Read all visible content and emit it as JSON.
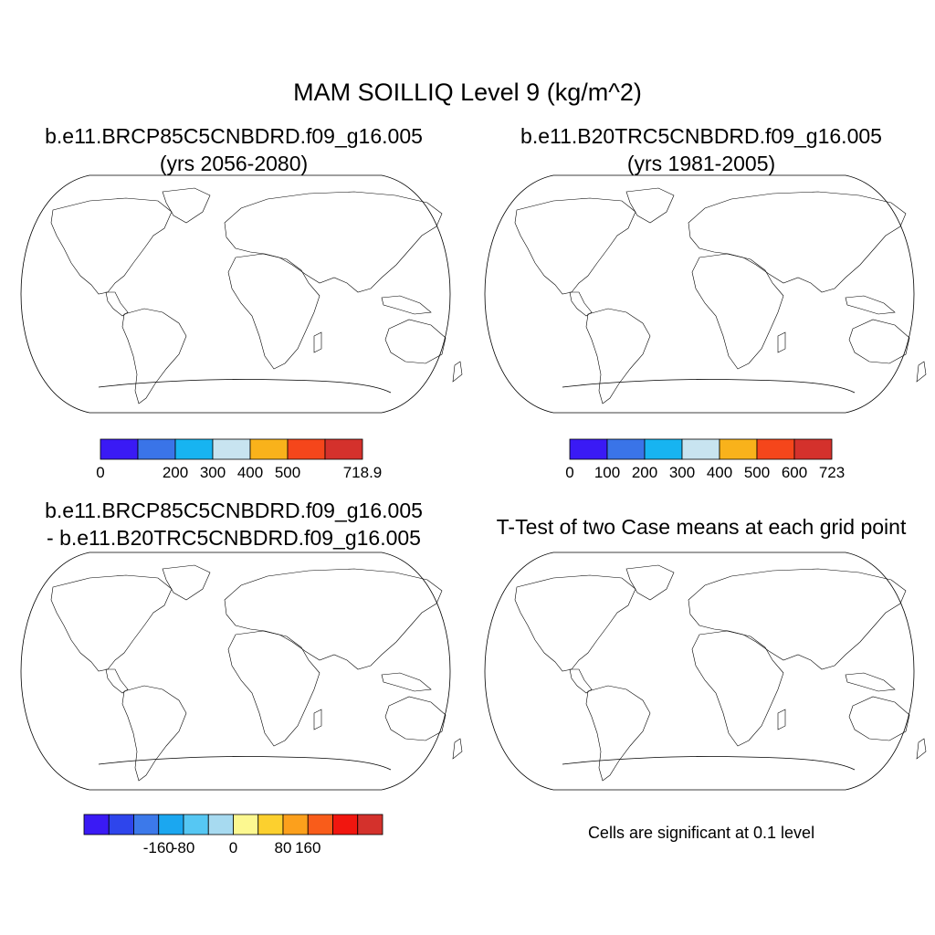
{
  "figure": {
    "title": "MAM SOILLIQ Level 9 (kg/m^2)",
    "note": "Cells are significant at 0.1 level"
  },
  "panels": [
    {
      "id": "p1",
      "title_line1": "b.e11.BRCP85C5CNBDRD.f09_g16.005",
      "title_line2": "(yrs 2056-2080)",
      "colorbar": {
        "colors": [
          "#3a1af5",
          "#3a74e8",
          "#17b4f1",
          "#c8e4f0",
          "#f9b21b",
          "#f5461b",
          "#d4312c"
        ],
        "labels": [
          "0",
          "200",
          "300",
          "400",
          "500",
          "718.9"
        ],
        "label_boundaries": [
          0,
          2,
          3,
          4,
          5,
          7
        ]
      }
    },
    {
      "id": "p2",
      "title_line1": "b.e11.B20TRC5CNBDRD.f09_g16.005",
      "title_line2": "(yrs 1981-2005)",
      "colorbar": {
        "colors": [
          "#3a1af5",
          "#3a74e8",
          "#17b4f1",
          "#c8e4f0",
          "#f9b21b",
          "#f5461b",
          "#d4312c"
        ],
        "labels": [
          "0",
          "100",
          "200",
          "300",
          "400",
          "500",
          "600",
          "723"
        ],
        "label_boundaries": [
          0,
          1,
          2,
          3,
          4,
          5,
          6,
          7
        ]
      }
    },
    {
      "id": "p3",
      "title_line1": "b.e11.BRCP85C5CNBDRD.f09_g16.005",
      "title_line2": "- b.e11.B20TRC5CNBDRD.f09_g16.005",
      "colorbar": {
        "colors": [
          "#3a1af5",
          "#2e45ec",
          "#3c79ea",
          "#1ba7f0",
          "#56c7f3",
          "#a7daf0",
          "#fcf890",
          "#fcd02e",
          "#fca01c",
          "#f95c1a",
          "#f1160f",
          "#d4312c"
        ],
        "labels": [
          "-160",
          "-80",
          "0",
          "80",
          "160"
        ],
        "label_boundaries": [
          3,
          4,
          6,
          8,
          9
        ]
      }
    },
    {
      "id": "p4",
      "title_line1": "T-Test of two Case means at each grid point",
      "title_line2": ""
    }
  ]
}
